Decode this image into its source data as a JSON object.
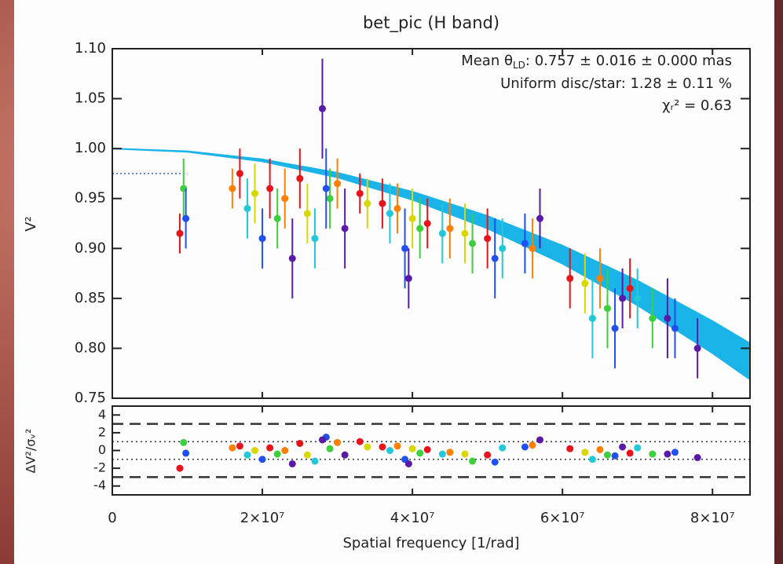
{
  "chart_data": {
    "type": "scatter",
    "title": "bet_pic (H band)",
    "xlabel": "Spatial frequency [1/rad]",
    "ylabel": "V²",
    "annotations": [
      [
        "Mean θ",
        "LD",
        ": 0.757 ± 0.016 ± 0.000 mas"
      ],
      "Uniform disc/star:  1.28 ± 0.11 %",
      "χᵣ² =  0.63"
    ],
    "xlim": [
      0,
      85000000
    ],
    "xticks": [
      0,
      {
        "value": 20000000,
        "label": "2×10⁷"
      },
      {
        "value": 40000000,
        "label": "4×10⁷"
      },
      {
        "value": 60000000,
        "label": "6×10⁷"
      },
      {
        "value": 80000000,
        "label": "8×10⁷"
      }
    ],
    "ylim": [
      0.75,
      1.1
    ],
    "yticks": [
      0.75,
      {
        "value": 0.8,
        "label": "0.80"
      },
      0.85,
      {
        "value": 0.9,
        "label": "0.90"
      },
      0.95,
      {
        "value": 1,
        "label": "1.00"
      },
      1.05,
      {
        "value": 1.1,
        "label": "1.10"
      }
    ],
    "model": {
      "color": "#1ab4e8",
      "x": [
        0,
        10000000,
        20000000,
        30000000,
        40000000,
        50000000,
        60000000,
        70000000,
        80000000,
        85000000
      ],
      "lower": [
        1,
        0.9968,
        0.9872,
        0.9712,
        0.9488,
        0.92,
        0.8848,
        0.8432,
        0.7952,
        0.7688
      ],
      "upper": [
        1,
        0.9973,
        0.9892,
        0.9757,
        0.9568,
        0.9325,
        0.9028,
        0.8677,
        0.8272,
        0.8049
      ]
    },
    "star_line": {
      "color": "#3060e0",
      "x": [
        0,
        10000000
      ],
      "values": [
        0.975,
        0.975
      ]
    },
    "residual_panel": {
      "ylabel": "ΔV²/σᵥ²",
      "ylim": [
        -5,
        5
      ],
      "yticks": [
        -4,
        -2,
        0,
        2,
        4
      ],
      "dashed": [
        -3,
        3
      ],
      "dotted": [
        -1,
        1
      ]
    },
    "series": [
      {
        "color": "#e8141c",
        "x": [
          9000000,
          17000000,
          21000000,
          25000000,
          33000000,
          36000000,
          42000000,
          50000000,
          61000000,
          69000000
        ],
        "values": [
          0.915,
          0.975,
          0.96,
          0.97,
          0.955,
          0.945,
          0.925,
          0.91,
          0.87,
          0.86
        ],
        "errors": [
          0.02,
          0.025,
          0.03,
          0.03,
          0.02,
          0.025,
          0.025,
          0.03,
          0.03,
          0.03
        ],
        "residuals": [
          -2,
          0.5,
          0.3,
          0.8,
          1,
          0.4,
          0.1,
          -0.5,
          0.2,
          -0.3
        ]
      },
      {
        "color": "#ff7f00",
        "x": [
          16000000,
          23000000,
          30000000,
          38000000,
          45000000,
          56000000,
          65000000
        ],
        "values": [
          0.96,
          0.95,
          0.965,
          0.94,
          0.92,
          0.9,
          0.87
        ],
        "errors": [
          0.02,
          0.03,
          0.025,
          0.025,
          0.03,
          0.03,
          0.03
        ],
        "residuals": [
          0.3,
          0,
          0.9,
          0.5,
          -0.2,
          0.6,
          0.1
        ]
      },
      {
        "color": "#d8d800",
        "x": [
          19000000,
          26000000,
          34000000,
          40000000,
          47000000,
          63000000
        ],
        "values": [
          0.955,
          0.935,
          0.945,
          0.93,
          0.915,
          0.865
        ],
        "errors": [
          0.03,
          0.03,
          0.025,
          0.03,
          0.03,
          0.03
        ],
        "residuals": [
          0,
          -0.5,
          0.4,
          0.2,
          -0.4,
          -0.2
        ]
      },
      {
        "color": "#3cd03c",
        "x": [
          9500000,
          22000000,
          29000000,
          41000000,
          48000000,
          66000000,
          72000000
        ],
        "values": [
          0.96,
          0.93,
          0.95,
          0.92,
          0.905,
          0.84,
          0.83
        ],
        "errors": [
          0.03,
          0.03,
          0.03,
          0.03,
          0.03,
          0.04,
          0.03
        ],
        "residuals": [
          0.9,
          -0.4,
          0.2,
          -0.3,
          -1.2,
          -0.5,
          -0.4
        ]
      },
      {
        "color": "#20c8d8",
        "x": [
          18000000,
          27000000,
          37000000,
          44000000,
          52000000,
          64000000,
          70000000
        ],
        "values": [
          0.94,
          0.91,
          0.935,
          0.915,
          0.9,
          0.83,
          0.85
        ],
        "errors": [
          0.03,
          0.03,
          0.03,
          0.03,
          0.03,
          0.04,
          0.03
        ],
        "residuals": [
          -0.5,
          -1.2,
          0,
          -0.4,
          0.3,
          -1,
          0.3
        ]
      },
      {
        "color": "#2050f0",
        "x": [
          9800000,
          20000000,
          28500000,
          39000000,
          51000000,
          55000000,
          67000000,
          75000000
        ],
        "values": [
          0.93,
          0.91,
          0.96,
          0.9,
          0.89,
          0.905,
          0.82,
          0.82
        ],
        "errors": [
          0.03,
          0.03,
          0.04,
          0.04,
          0.04,
          0.03,
          0.04,
          0.03
        ],
        "residuals": [
          -0.3,
          -1,
          1.5,
          -1,
          -1.3,
          0.4,
          -0.6,
          -0.2
        ]
      },
      {
        "color": "#5a1aa8",
        "x": [
          24000000,
          28000000,
          31000000,
          39500000,
          57000000,
          68000000,
          74000000,
          78000000
        ],
        "values": [
          0.89,
          1.04,
          0.92,
          0.87,
          0.93,
          0.85,
          0.83,
          0.8
        ],
        "errors": [
          0.04,
          0.05,
          0.04,
          0.03,
          0.03,
          0.03,
          0.04,
          0.03
        ],
        "residuals": [
          -1.5,
          1.2,
          -0.5,
          -1.5,
          1.2,
          0.4,
          -0.4,
          -0.8
        ]
      }
    ]
  }
}
